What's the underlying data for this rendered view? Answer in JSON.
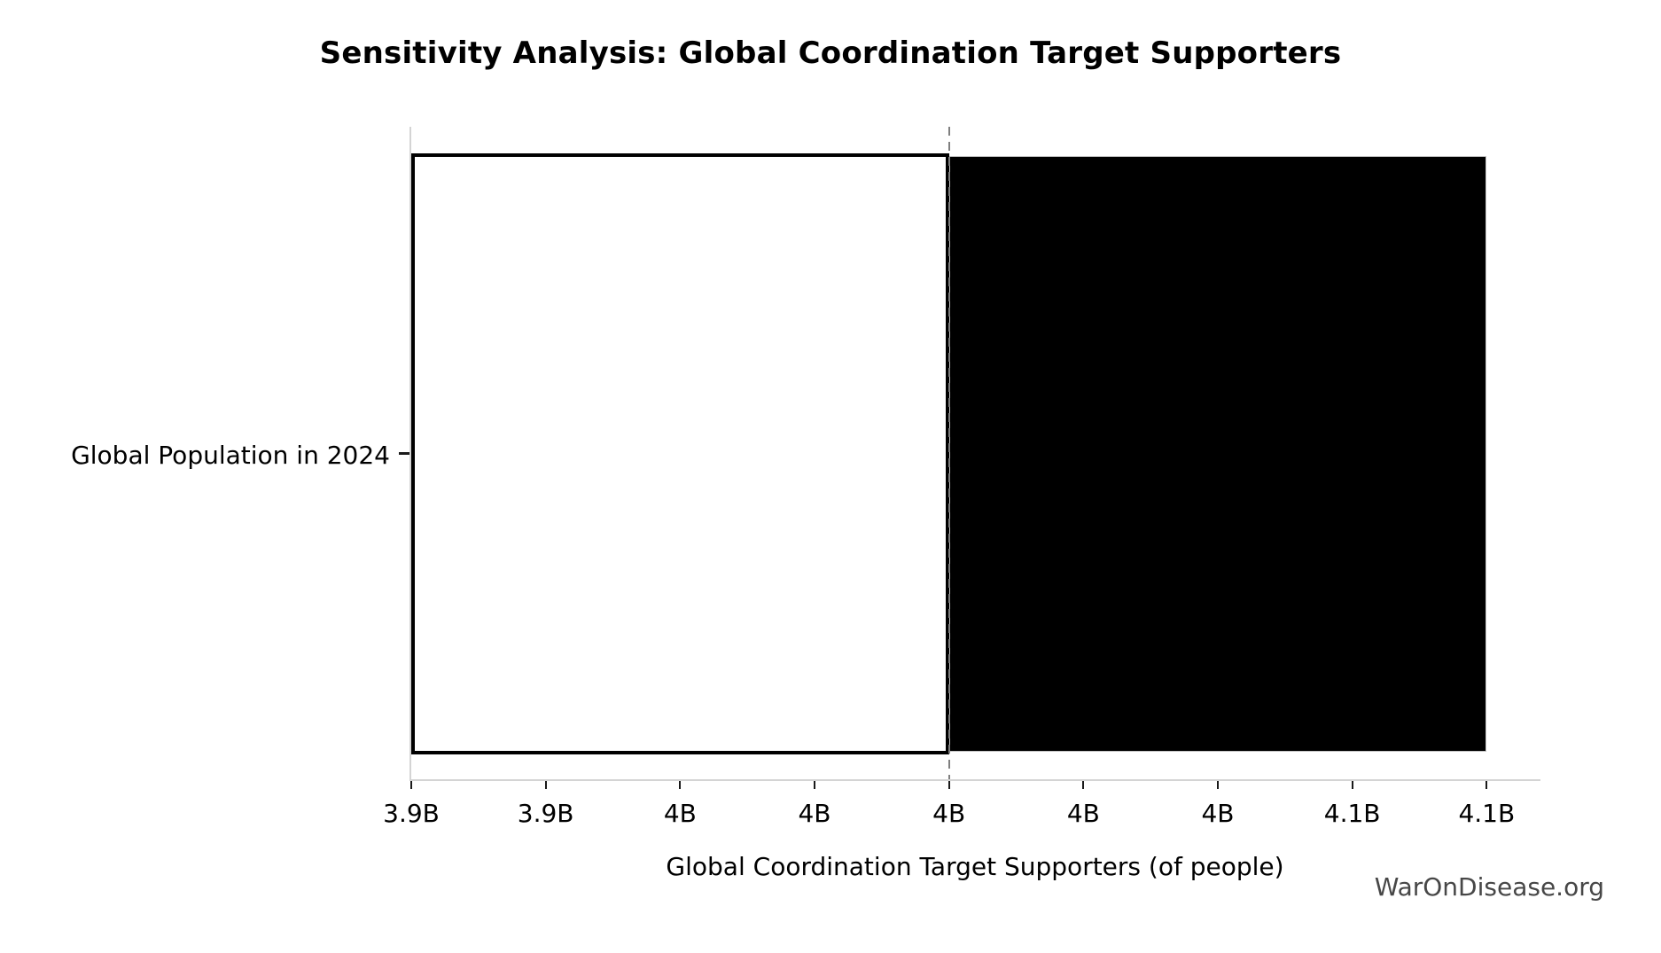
{
  "watermark": {
    "text": "WarOnDisease.org",
    "color": "#474747"
  },
  "colors": {
    "background": "#ffffff",
    "spine": "#d4d4d4",
    "tick": "#1a1a1a",
    "baseline_dash": "#7f7f7f",
    "text": "#000000",
    "watermark": "#474747"
  },
  "chart_data": {
    "type": "bar",
    "subtype": "tornado_sensitivity",
    "orientation": "horizontal",
    "title": "Sensitivity Analysis: Global Coordination Target Supporters",
    "xlabel": "Global Coordination Target Supporters (of people)",
    "ylabel": "",
    "categories": [
      "Global Population in 2024"
    ],
    "unit": "billions of people",
    "xlim": [
      3.9,
      4.11
    ],
    "baseline": 4.0,
    "segments": [
      {
        "name": "low-range",
        "from": 3.9,
        "to": 4.0,
        "fill": "#ffffff",
        "edge": "#000000",
        "edge_width": 4
      },
      {
        "name": "high-range",
        "from": 4.0,
        "to": 4.1,
        "fill": "#000000",
        "edge": "#c4c4c4",
        "edge_width": 1
      }
    ],
    "xticks": [
      {
        "value": 3.9,
        "label": "3.9B"
      },
      {
        "value": 3.925,
        "label": "3.9B"
      },
      {
        "value": 3.95,
        "label": "4B"
      },
      {
        "value": 3.975,
        "label": "4B"
      },
      {
        "value": 4.0,
        "label": "4B"
      },
      {
        "value": 4.025,
        "label": "4B"
      },
      {
        "value": 4.05,
        "label": "4B"
      },
      {
        "value": 4.075,
        "label": "4.1B"
      },
      {
        "value": 4.1,
        "label": "4.1B"
      }
    ],
    "grid": false,
    "legend": false
  }
}
